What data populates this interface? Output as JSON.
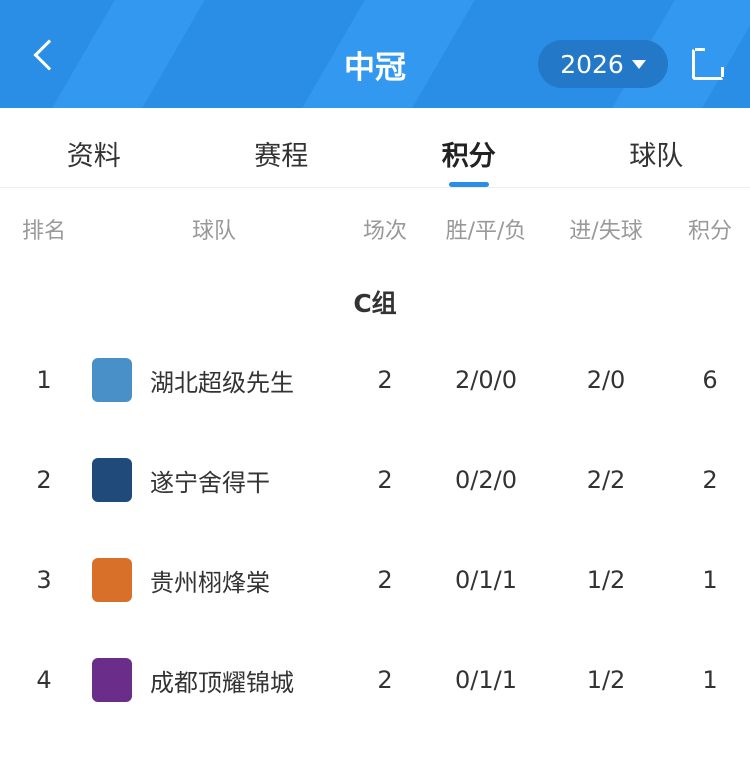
{
  "header": {
    "title": "中冠",
    "year": "2026"
  },
  "tabs": [
    "资料",
    "赛程",
    "积分",
    "球队"
  ],
  "active_tab": 2,
  "columns": {
    "rank": "排名",
    "team": "球队",
    "played": "场次",
    "wdl": "胜/平/负",
    "goals": "进/失球",
    "points": "积分"
  },
  "group": "C组",
  "rows": [
    {
      "rank": "1",
      "team": "湖北超级先生",
      "played": "2",
      "wdl": "2/0/0",
      "goals": "2/0",
      "points": "6",
      "logo_color": "#4a90c8"
    },
    {
      "rank": "2",
      "team": "遂宁舍得干",
      "played": "2",
      "wdl": "0/2/0",
      "goals": "2/2",
      "points": "2",
      "logo_color": "#1f4a7a"
    },
    {
      "rank": "3",
      "team": "贵州栩烽棠",
      "played": "2",
      "wdl": "0/1/1",
      "goals": "1/2",
      "points": "1",
      "logo_color": "#d9702a"
    },
    {
      "rank": "4",
      "team": "成都顶耀锦城",
      "played": "2",
      "wdl": "0/1/1",
      "goals": "1/2",
      "points": "1",
      "logo_color": "#6a2d8a"
    }
  ]
}
